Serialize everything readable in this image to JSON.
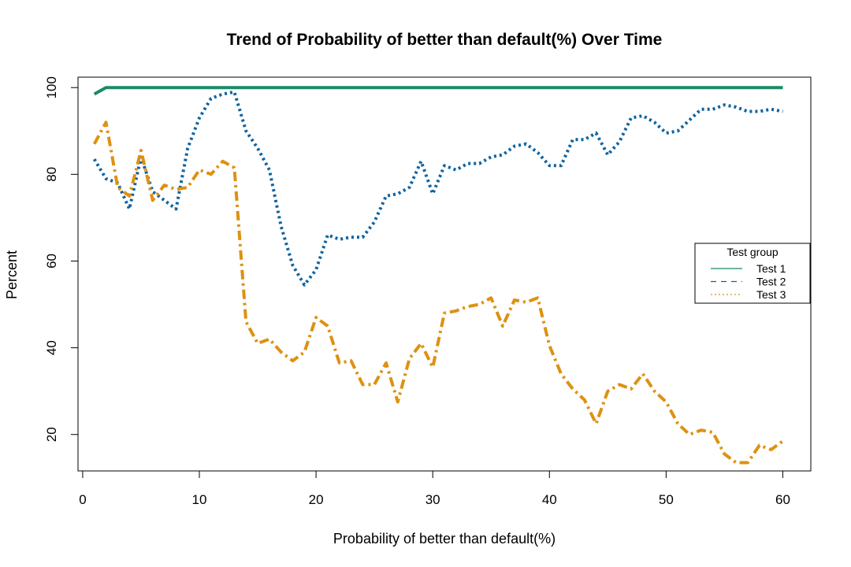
{
  "chart_data": {
    "type": "line",
    "title": "Trend of Probability of better than default(%) Over Time",
    "xlabel": "Probability of better than default(%)",
    "ylabel": "Percent",
    "xlim": [
      -0.4,
      62.4
    ],
    "ylim": [
      11.6,
      102.4
    ],
    "xticks": [
      0,
      10,
      20,
      30,
      40,
      50,
      60
    ],
    "yticks": [
      20,
      40,
      60,
      80,
      100
    ],
    "grid": false,
    "legend": {
      "title": "Test group",
      "position": "right"
    },
    "x": [
      1,
      2,
      3,
      4,
      5,
      6,
      7,
      8,
      9,
      10,
      11,
      12,
      13,
      14,
      15,
      16,
      17,
      18,
      19,
      20,
      21,
      22,
      23,
      24,
      25,
      26,
      27,
      28,
      29,
      30,
      31,
      32,
      33,
      34,
      35,
      36,
      37,
      38,
      39,
      40,
      41,
      42,
      43,
      44,
      45,
      46,
      47,
      48,
      49,
      50,
      51,
      52,
      53,
      54,
      55,
      56,
      57,
      58,
      59,
      60
    ],
    "series": [
      {
        "name": "Test 1",
        "color": "#1a8a68",
        "dash": "solid",
        "values": [
          98.5,
          100,
          100,
          100,
          100,
          100,
          100,
          100,
          100,
          100,
          100,
          100,
          100,
          100,
          100,
          100,
          100,
          100,
          100,
          100,
          100,
          100,
          100,
          100,
          100,
          100,
          100,
          100,
          100,
          100,
          100,
          100,
          100,
          100,
          100,
          100,
          100,
          100,
          100,
          100,
          100,
          100,
          100,
          100,
          100,
          100,
          100,
          100,
          100,
          100,
          100,
          100,
          100,
          100,
          100,
          100,
          100,
          100,
          100,
          100
        ]
      },
      {
        "name": "Test 2",
        "color": "#0f63a0",
        "dash": "dashed",
        "values": [
          83.5,
          79,
          78,
          72,
          84,
          76,
          74,
          72,
          86,
          93,
          97.5,
          98.5,
          99,
          90,
          86,
          81,
          68,
          59,
          54.5,
          58,
          66,
          65,
          65.5,
          65.5,
          69,
          75,
          75.5,
          77,
          83,
          75.5,
          82,
          81,
          82.5,
          82.5,
          84,
          84.5,
          86.5,
          87,
          85,
          82,
          82,
          88,
          88,
          89.5,
          84.5,
          87.5,
          93,
          93.5,
          92,
          89.5,
          90,
          92.5,
          95,
          95,
          96,
          95.5,
          94.5,
          94.5,
          95,
          94.5
        ]
      },
      {
        "name": "Test 3",
        "color": "#de9112",
        "dash": "dotted",
        "values": [
          87,
          92,
          77,
          75,
          85.5,
          74,
          77.5,
          76.5,
          77,
          81,
          80,
          83,
          81.5,
          46,
          41,
          42,
          39,
          37,
          39,
          47,
          45,
          36.5,
          37,
          31.5,
          31.5,
          36.5,
          27.5,
          37.5,
          41,
          35.5,
          48,
          48.5,
          49.5,
          50,
          51.5,
          45,
          51,
          50.5,
          51.5,
          40.5,
          34,
          30.5,
          28,
          22.5,
          30,
          31.5,
          30.5,
          34,
          30,
          27.5,
          22.5,
          20,
          21,
          20.5,
          15.5,
          13.5,
          13.5,
          17.5,
          16.5,
          18.5
        ]
      }
    ]
  }
}
